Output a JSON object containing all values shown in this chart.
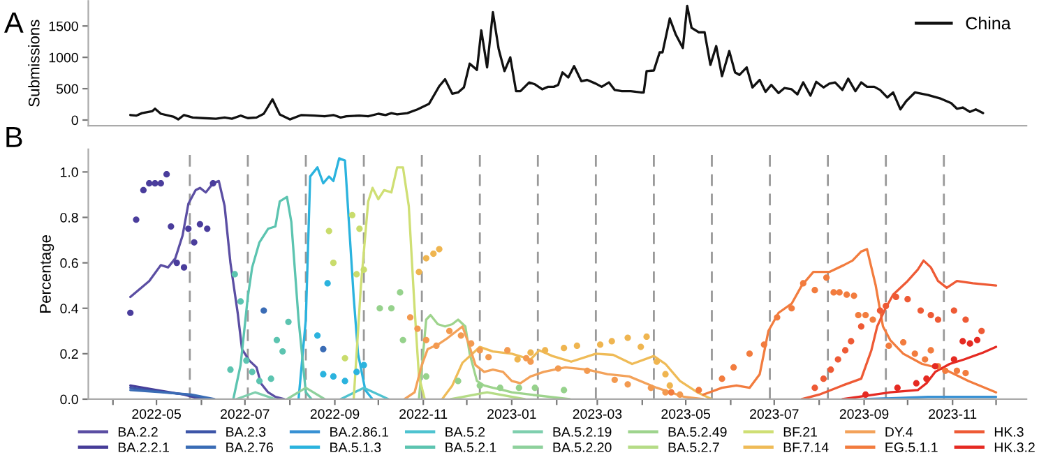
{
  "chart_data": [
    {
      "type": "line",
      "title": "A",
      "ylabel": "Submissions",
      "xlim": [
        "2022-03-15",
        "2023-12-22"
      ],
      "ylim": [
        -90,
        1900
      ],
      "yticks": [
        0,
        500,
        1000,
        1500
      ],
      "tick_labels": "y",
      "legend": "top right",
      "series": [
        {
          "name": "China",
          "color": "#111111",
          "x": [
            "2022-04-13",
            "2022-04-17",
            "2022-04-21",
            "2022-04-28",
            "2022-04-30",
            "2022-05-04",
            "2022-05-13",
            "2022-05-16",
            "2022-05-20",
            "2022-05-26",
            "2022-06-02",
            "2022-06-11",
            "2022-06-17",
            "2022-06-22",
            "2022-06-28",
            "2022-07-03",
            "2022-07-09",
            "2022-07-14",
            "2022-07-20",
            "2022-07-25",
            "2022-08-01",
            "2022-08-09",
            "2022-08-18",
            "2022-08-25",
            "2022-08-31",
            "2022-09-05",
            "2022-09-09",
            "2022-09-18",
            "2022-09-24",
            "2022-10-01",
            "2022-10-06",
            "2022-10-10",
            "2022-10-14",
            "2022-10-21",
            "2022-10-28",
            "2022-11-05",
            "2022-11-12",
            "2022-11-16",
            "2022-11-21",
            "2022-11-25",
            "2022-11-29",
            "2022-12-03",
            "2022-12-08",
            "2022-12-11",
            "2022-12-15",
            "2022-12-19",
            "2022-12-23",
            "2022-12-27",
            "2022-12-31",
            "2023-01-04",
            "2023-01-07",
            "2023-01-13",
            "2023-01-17",
            "2023-01-22",
            "2023-01-26",
            "2023-01-30",
            "2023-02-02",
            "2023-02-05",
            "2023-02-09",
            "2023-02-13",
            "2023-02-18",
            "2023-02-22",
            "2023-02-28",
            "2023-03-04",
            "2023-03-09",
            "2023-03-13",
            "2023-03-18",
            "2023-03-24",
            "2023-03-31",
            "2023-04-02",
            "2023-04-04",
            "2023-04-09",
            "2023-04-13",
            "2023-04-15",
            "2023-04-20",
            "2023-04-24",
            "2023-04-29",
            "2023-05-02",
            "2023-05-05",
            "2023-05-10",
            "2023-05-14",
            "2023-05-18",
            "2023-05-22",
            "2023-05-26",
            "2023-05-31",
            "2023-06-04",
            "2023-06-07",
            "2023-06-12",
            "2023-06-16",
            "2023-06-21",
            "2023-06-25",
            "2023-06-29",
            "2023-07-04",
            "2023-07-08",
            "2023-07-13",
            "2023-07-17",
            "2023-07-21",
            "2023-07-26",
            "2023-07-30",
            "2023-08-04",
            "2023-08-08",
            "2023-08-12",
            "2023-08-17",
            "2023-08-21",
            "2023-08-26",
            "2023-08-30",
            "2023-09-03",
            "2023-09-08",
            "2023-09-12",
            "2023-09-17",
            "2023-09-21",
            "2023-09-26",
            "2023-09-30",
            "2023-10-06",
            "2023-10-15",
            "2023-10-24",
            "2023-10-31",
            "2023-11-04",
            "2023-11-08",
            "2023-11-13",
            "2023-11-17",
            "2023-11-22"
          ],
          "values": [
            80,
            70,
            110,
            140,
            180,
            100,
            50,
            10,
            80,
            40,
            30,
            20,
            40,
            20,
            70,
            30,
            40,
            100,
            330,
            90,
            10,
            80,
            70,
            60,
            80,
            40,
            60,
            70,
            60,
            100,
            80,
            110,
            90,
            110,
            170,
            260,
            540,
            650,
            420,
            440,
            520,
            900,
            800,
            1430,
            840,
            1720,
            1130,
            780,
            1000,
            460,
            460,
            600,
            570,
            490,
            530,
            530,
            560,
            760,
            680,
            860,
            620,
            640,
            580,
            530,
            600,
            480,
            460,
            460,
            440,
            440,
            780,
            790,
            1080,
            1080,
            1620,
            1370,
            1150,
            1820,
            1470,
            1400,
            1400,
            880,
            1180,
            700,
            1100,
            760,
            720,
            840,
            520,
            640,
            450,
            560,
            430,
            510,
            490,
            410,
            600,
            390,
            610,
            520,
            580,
            600,
            480,
            660,
            460,
            600,
            530,
            530,
            480,
            360,
            440,
            170,
            300,
            440,
            400,
            340,
            270,
            180,
            200,
            130,
            170,
            110
          ]
        }
      ]
    },
    {
      "type": "line",
      "title": "B",
      "ylabel": "Percentage",
      "xlim": [
        "2022-03-15",
        "2023-12-22"
      ],
      "ylim": [
        0,
        1.1
      ],
      "yticks": [
        {
          "value": 0,
          "label": "0.0"
        },
        {
          "value": 0.2,
          "label": "0.2"
        },
        {
          "value": 0.4,
          "label": "0.4"
        },
        {
          "value": 0.6,
          "label": "0.6"
        },
        {
          "value": 0.8,
          "label": "0.8"
        },
        {
          "value": 1.0,
          "label": "1.0"
        }
      ],
      "xticks": [
        {
          "value": "2022-04-01",
          "label": null
        },
        {
          "value": "2022-05-01",
          "label": "2022-05"
        },
        {
          "value": "2022-06-01",
          "label": null
        },
        {
          "value": "2022-07-01",
          "label": "2022-07"
        },
        {
          "value": "2022-08-01",
          "label": null
        },
        {
          "value": "2022-09-01",
          "label": "2022-09"
        },
        {
          "value": "2022-10-01",
          "label": null
        },
        {
          "value": "2022-11-01",
          "label": "2022-11"
        },
        {
          "value": "2022-12-01",
          "label": null
        },
        {
          "value": "2023-01-01",
          "label": "2023-01"
        },
        {
          "value": "2023-02-01",
          "label": null
        },
        {
          "value": "2023-03-01",
          "label": "2023-03"
        },
        {
          "value": "2023-04-01",
          "label": null
        },
        {
          "value": "2023-05-01",
          "label": "2023-05"
        },
        {
          "value": "2023-06-01",
          "label": null
        },
        {
          "value": "2023-07-01",
          "label": "2023-07"
        },
        {
          "value": "2023-08-01",
          "label": null
        },
        {
          "value": "2023-09-01",
          "label": "2023-09"
        },
        {
          "value": "2023-10-01",
          "label": null
        },
        {
          "value": "2023-11-01",
          "label": "2023-11"
        },
        {
          "value": "2023-12-01",
          "label": null
        }
      ],
      "legend": "bottom",
      "ref_lines": [
        {
          "axis": "x",
          "value": "2022-05-24",
          "color": "#999999",
          "line_style": "dashed"
        },
        {
          "axis": "x",
          "value": "2022-07-03",
          "color": "#999999",
          "line_style": "dashed"
        },
        {
          "axis": "x",
          "value": "2022-08-12",
          "color": "#999999",
          "line_style": "dashed"
        },
        {
          "axis": "x",
          "value": "2022-09-21",
          "color": "#999999",
          "line_style": "dashed"
        },
        {
          "axis": "x",
          "value": "2022-10-31",
          "color": "#999999",
          "line_style": "dashed"
        },
        {
          "axis": "x",
          "value": "2022-12-10",
          "color": "#999999",
          "line_style": "dashed"
        },
        {
          "axis": "x",
          "value": "2023-01-19",
          "color": "#999999",
          "line_style": "dashed"
        },
        {
          "axis": "x",
          "value": "2023-02-28",
          "color": "#999999",
          "line_style": "dashed"
        },
        {
          "axis": "x",
          "value": "2023-04-09",
          "color": "#999999",
          "line_style": "dashed"
        },
        {
          "axis": "x",
          "value": "2023-05-19",
          "color": "#999999",
          "line_style": "dashed"
        },
        {
          "axis": "x",
          "value": "2023-06-28",
          "color": "#999999",
          "line_style": "dashed"
        },
        {
          "axis": "x",
          "value": "2023-08-07",
          "color": "#999999",
          "line_style": "dashed"
        },
        {
          "axis": "x",
          "value": "2023-09-16",
          "color": "#999999",
          "line_style": "dashed"
        },
        {
          "axis": "x",
          "value": "2023-10-26",
          "color": "#999999",
          "line_style": "dashed"
        }
      ],
      "series": [
        {
          "name": "BA.2.2",
          "color": "#5b4ea3",
          "type": "line",
          "x": [
            "2022-04-13",
            "2022-04-26",
            "2022-05-04",
            "2022-05-09",
            "2022-05-14",
            "2022-05-19",
            "2022-05-23",
            "2022-05-28",
            "2022-05-31",
            "2022-06-04",
            "2022-06-09",
            "2022-06-13",
            "2022-06-17",
            "2022-06-21",
            "2022-06-26",
            "2022-06-29",
            "2022-07-04",
            "2022-07-09",
            "2022-07-12",
            "2022-07-17",
            "2022-07-22",
            "2022-07-28"
          ],
          "values": [
            0.45,
            0.52,
            0.59,
            0.58,
            0.62,
            0.72,
            0.86,
            0.92,
            0.93,
            0.91,
            0.95,
            0.96,
            0.85,
            0.6,
            0.38,
            0.22,
            0.17,
            0.14,
            0.07,
            0.03,
            0.01,
            0
          ]
        },
        {
          "name": "BA.2.2.1",
          "color": "#463c98",
          "type": "line",
          "x": [
            "2022-04-13",
            "2022-05-01",
            "2022-05-20",
            "2022-06-01"
          ],
          "values": [
            0.06,
            0.04,
            0.02,
            0
          ]
        },
        {
          "name": "BA.2.3",
          "color": "#3d55a8",
          "type": "line",
          "x": [
            "2022-04-13",
            "2022-05-01",
            "2022-05-22",
            "2022-06-05"
          ],
          "values": [
            0.05,
            0.035,
            0.02,
            0
          ]
        },
        {
          "name": "BA.2.76",
          "color": "#3a6cb5",
          "type": "line",
          "x": [
            "2022-04-13",
            "2022-05-05",
            "2022-05-25",
            "2022-06-10"
          ],
          "values": [
            0.04,
            0.03,
            0.02,
            0
          ]
        },
        {
          "name": "BA.2.86.1",
          "color": "#3891d4",
          "type": "line",
          "x": [
            "2023-09-01",
            "2023-10-15",
            "2023-12-01"
          ],
          "values": [
            0,
            0.01,
            0.01
          ]
        },
        {
          "name": "BA.5.1.3",
          "color": "#2bb3de",
          "type": "line",
          "x": [
            "2022-08-07",
            "2022-08-12",
            "2022-08-15",
            "2022-08-20",
            "2022-08-24",
            "2022-08-28",
            "2022-08-31",
            "2022-09-04",
            "2022-09-08",
            "2022-09-11",
            "2022-09-14",
            "2022-09-17",
            "2022-09-22",
            "2022-09-27"
          ],
          "values": [
            0,
            0.35,
            0.98,
            1.02,
            0.95,
            0.98,
            0.96,
            1.06,
            1.05,
            0.75,
            0.45,
            0.2,
            0.04,
            0
          ]
        },
        {
          "name": "BA.5.2",
          "color": "#4ec3d0",
          "type": "line",
          "x": [
            "2022-09-05",
            "2022-09-21",
            "2022-10-08"
          ],
          "values": [
            0,
            0.05,
            0
          ]
        },
        {
          "name": "BA.5.2.1",
          "color": "#5cc4b0",
          "type": "line",
          "x": [
            "2022-06-23",
            "2022-06-28",
            "2022-07-03",
            "2022-07-06",
            "2022-07-11",
            "2022-07-17",
            "2022-07-22",
            "2022-07-25",
            "2022-07-30",
            "2022-08-02",
            "2022-08-07",
            "2022-08-12",
            "2022-08-16"
          ],
          "values": [
            0,
            0.15,
            0.45,
            0.58,
            0.69,
            0.75,
            0.76,
            0.87,
            0.89,
            0.78,
            0.35,
            0.03,
            0
          ]
        },
        {
          "name": "BA.5.2.19",
          "color": "#7fcfae",
          "type": "line",
          "x": [
            "2022-06-25",
            "2022-07-08",
            "2022-07-22"
          ],
          "values": [
            0,
            0.03,
            0
          ]
        },
        {
          "name": "BA.5.2.20",
          "color": "#8ed19c",
          "type": "line",
          "x": [
            "2022-07-30",
            "2022-08-12",
            "2022-08-25"
          ],
          "values": [
            0,
            0.05,
            0
          ]
        },
        {
          "name": "BA.5.2.49",
          "color": "#9ed48d",
          "type": "line",
          "x": [
            "2022-10-29",
            "2022-11-03",
            "2022-11-06",
            "2022-11-11",
            "2022-11-16",
            "2022-11-21",
            "2022-11-25",
            "2022-11-30",
            "2022-12-03",
            "2022-12-08",
            "2022-12-13",
            "2022-12-19",
            "2022-12-26",
            "2023-01-01",
            "2023-01-14",
            "2023-02-10"
          ],
          "values": [
            0,
            0.35,
            0.37,
            0.33,
            0.32,
            0.33,
            0.35,
            0.32,
            0.2,
            0.08,
            0.06,
            0.05,
            0.04,
            0.03,
            0.02,
            0
          ]
        },
        {
          "name": "BA.5.2.7",
          "color": "#b5dc86",
          "type": "line",
          "x": [
            "2022-11-20",
            "2022-12-15",
            "2023-01-10"
          ],
          "values": [
            0,
            0.03,
            0
          ]
        },
        {
          "name": "BF.21",
          "color": "#cfdf74",
          "type": "line",
          "x": [
            "2022-09-14",
            "2022-09-19",
            "2022-09-24",
            "2022-09-27",
            "2022-10-01",
            "2022-10-05",
            "2022-10-10",
            "2022-10-14",
            "2022-10-18",
            "2022-10-22",
            "2022-10-26",
            "2022-10-29",
            "2022-11-02"
          ],
          "values": [
            0,
            0.5,
            0.87,
            0.93,
            0.88,
            0.92,
            0.91,
            1.02,
            1.02,
            0.85,
            0.4,
            0.1,
            0
          ]
        },
        {
          "name": "BF.7.14",
          "color": "#efbb57",
          "type": "line",
          "x": [
            "2022-11-14",
            "2022-11-21",
            "2022-11-28",
            "2022-12-10",
            "2022-12-19",
            "2023-01-01",
            "2023-01-14",
            "2023-01-20",
            "2023-01-29",
            "2023-02-11",
            "2023-02-28",
            "2023-03-12",
            "2023-03-25",
            "2023-04-09",
            "2023-04-17",
            "2023-04-27",
            "2023-05-09",
            "2023-05-19"
          ],
          "values": [
            0,
            0.06,
            0.16,
            0.23,
            0.21,
            0.2,
            0.175,
            0.215,
            0.19,
            0.165,
            0.2,
            0.195,
            0.155,
            0.19,
            0.155,
            0.08,
            0.03,
            0
          ]
        },
        {
          "name": "DY.4",
          "color": "#f3a25a",
          "type": "line",
          "x": [
            "2022-10-19",
            "2022-10-26",
            "2022-10-31",
            "2022-11-04",
            "2022-11-11",
            "2022-11-18",
            "2022-11-24",
            "2022-11-28",
            "2022-12-02",
            "2022-12-07",
            "2022-12-13",
            "2022-12-19",
            "2022-12-26",
            "2023-01-01",
            "2023-01-07",
            "2023-01-14",
            "2023-01-23",
            "2023-02-07",
            "2023-02-22",
            "2023-03-08",
            "2023-03-23",
            "2023-04-11",
            "2023-04-30",
            "2023-05-13"
          ],
          "values": [
            0,
            0.03,
            0.15,
            0.22,
            0.24,
            0.27,
            0.3,
            0.32,
            0.25,
            0.15,
            0.12,
            0.13,
            0.12,
            0.08,
            0.07,
            0.1,
            0.12,
            0.14,
            0.13,
            0.11,
            0.1,
            0.05,
            0.01,
            0
          ]
        },
        {
          "name": "EG.5.1.1",
          "color": "#f27c3e",
          "type": "line",
          "x": [
            "2023-05-13",
            "2023-05-26",
            "2023-06-05",
            "2023-06-14",
            "2023-06-21",
            "2023-06-27",
            "2023-07-04",
            "2023-07-13",
            "2023-07-20",
            "2023-07-28",
            "2023-08-08",
            "2023-08-18",
            "2023-08-24",
            "2023-08-30",
            "2023-09-03",
            "2023-09-06",
            "2023-09-09",
            "2023-09-14",
            "2023-09-19",
            "2023-09-28",
            "2023-10-11",
            "2023-10-27",
            "2023-11-12",
            "2023-12-01"
          ],
          "values": [
            0.02,
            0.05,
            0.06,
            0.05,
            0.11,
            0.3,
            0.38,
            0.42,
            0.5,
            0.56,
            0.56,
            0.59,
            0.61,
            0.65,
            0.66,
            0.58,
            0.5,
            0.32,
            0.26,
            0.2,
            0.155,
            0.13,
            0.08,
            0.03
          ]
        },
        {
          "name": "HK.3",
          "color": "#ee5a35",
          "type": "line",
          "x": [
            "2023-07-20",
            "2023-08-01",
            "2023-08-17",
            "2023-08-30",
            "2023-09-06",
            "2023-09-10",
            "2023-09-15",
            "2023-09-21",
            "2023-10-01",
            "2023-10-08",
            "2023-10-12",
            "2023-10-17",
            "2023-10-22",
            "2023-10-28",
            "2023-11-04",
            "2023-11-15",
            "2023-12-01"
          ],
          "values": [
            0,
            0.02,
            0.06,
            0.09,
            0.215,
            0.32,
            0.39,
            0.46,
            0.52,
            0.57,
            0.61,
            0.58,
            0.52,
            0.49,
            0.52,
            0.51,
            0.5
          ]
        },
        {
          "name": "HK.3.2",
          "color": "#e52a22",
          "type": "line",
          "x": [
            "2023-08-17",
            "2023-09-19",
            "2023-10-08",
            "2023-10-14",
            "2023-10-20",
            "2023-10-30",
            "2023-11-09",
            "2023-11-22",
            "2023-12-01"
          ],
          "values": [
            0,
            0.03,
            0.04,
            0.07,
            0.12,
            0.155,
            0.175,
            0.205,
            0.23
          ]
        },
        {
          "color": "#4a3d9c",
          "type": "scatter",
          "marker": "circle",
          "x": [
            "2022-04-13",
            "2022-04-17",
            "2022-04-22",
            "2022-04-26",
            "2022-04-30",
            "2022-05-04",
            "2022-05-08",
            "2022-05-11",
            "2022-05-15",
            "2022-05-20",
            "2022-05-23",
            "2022-05-27",
            "2022-05-31",
            "2022-06-05",
            "2022-06-09"
          ],
          "values": [
            0.38,
            0.79,
            0.92,
            0.95,
            0.95,
            0.95,
            0.99,
            0.76,
            0.6,
            0.58,
            0.75,
            0.69,
            0.77,
            0.75,
            0.95
          ]
        },
        {
          "color": "#3a6cb5",
          "type": "scatter",
          "marker": "circle",
          "x": [
            "2022-07-14",
            "2022-08-24"
          ],
          "values": [
            0.39,
            0.22
          ]
        },
        {
          "color": "#5cc4b0",
          "type": "scatter",
          "marker": "circle",
          "x": [
            "2022-06-21",
            "2022-06-24",
            "2022-06-28",
            "2022-07-02",
            "2022-07-06",
            "2022-07-11",
            "2022-07-19",
            "2022-07-23",
            "2022-07-27",
            "2022-07-31"
          ],
          "values": [
            0.13,
            0.55,
            0.43,
            0.17,
            0.12,
            0.08,
            0.09,
            0.26,
            0.21,
            0.34
          ]
        },
        {
          "color": "#2bb3de",
          "type": "scatter",
          "marker": "circle",
          "x": [
            "2022-08-20",
            "2022-08-24",
            "2022-08-27",
            "2022-08-31",
            "2022-09-08",
            "2022-09-16",
            "2022-09-21"
          ],
          "values": [
            0.28,
            0.11,
            0.51,
            0.1,
            0.08,
            0.12,
            0.15
          ]
        },
        {
          "color": "#c9dc6c",
          "type": "scatter",
          "marker": "circle",
          "x": [
            "2022-08-28",
            "2022-08-31",
            "2022-09-08",
            "2022-09-13",
            "2022-09-16",
            "2022-09-18",
            "2022-09-21"
          ],
          "values": [
            0.74,
            0.6,
            0.18,
            0.81,
            0.55,
            0.75,
            0.57
          ]
        },
        {
          "color": "#96d28c",
          "type": "scatter",
          "marker": "circle",
          "x": [
            "2022-10-02",
            "2022-10-10",
            "2022-10-16",
            "2022-10-18",
            "2022-11-03",
            "2022-11-25",
            "2022-12-10",
            "2022-12-24",
            "2023-01-06",
            "2023-01-17",
            "2023-02-06"
          ],
          "values": [
            0.4,
            0.4,
            0.47,
            0.26,
            0.1,
            0.08,
            0.06,
            0.05,
            0.05,
            0.05,
            0.04
          ]
        },
        {
          "color": "#efb550",
          "type": "scatter",
          "marker": "circle",
          "x": [
            "2022-10-29",
            "2022-11-03",
            "2022-11-08",
            "2022-11-12",
            "2023-01-05",
            "2023-01-14",
            "2023-01-24",
            "2023-02-06",
            "2023-02-15",
            "2023-03-03",
            "2023-03-11",
            "2023-03-22",
            "2023-03-31",
            "2023-04-04",
            "2023-04-11",
            "2023-04-17",
            "2023-04-20"
          ],
          "values": [
            0.56,
            0.62,
            0.64,
            0.66,
            0.175,
            0.205,
            0.215,
            0.225,
            0.235,
            0.24,
            0.255,
            0.27,
            0.23,
            0.275,
            0.165,
            0.11,
            0.06
          ]
        },
        {
          "color": "#f39a50",
          "type": "scatter",
          "marker": "circle",
          "x": [
            "2022-10-23",
            "2022-10-28",
            "2022-11-03",
            "2022-11-10",
            "2022-11-19",
            "2022-11-27",
            "2022-12-04",
            "2022-12-10",
            "2022-12-16",
            "2022-12-29",
            "2023-01-11",
            "2023-01-14",
            "2023-02-02",
            "2023-02-22",
            "2023-03-13",
            "2023-03-22",
            "2023-04-07",
            "2023-04-17",
            "2023-04-27"
          ],
          "values": [
            0.36,
            0.31,
            0.26,
            0.235,
            0.3,
            0.28,
            0.245,
            0.215,
            0.185,
            0.215,
            0.18,
            0.165,
            0.135,
            0.125,
            0.085,
            0.065,
            0.05,
            0.03,
            0.02
          ]
        },
        {
          "color": "#f27c3e",
          "type": "scatter",
          "marker": "circle",
          "x": [
            "2023-04-21",
            "2023-05-10",
            "2023-05-26",
            "2023-06-03",
            "2023-06-14",
            "2023-06-24",
            "2023-07-03",
            "2023-07-13",
            "2023-07-21",
            "2023-07-29",
            "2023-08-06",
            "2023-08-11",
            "2023-08-15",
            "2023-08-20",
            "2023-08-25",
            "2023-08-28",
            "2023-09-02",
            "2023-09-07",
            "2023-09-18",
            "2023-09-28",
            "2023-10-06",
            "2023-10-13",
            "2023-10-17",
            "2023-10-22",
            "2023-10-27",
            "2023-11-04",
            "2023-11-10"
          ],
          "values": [
            0.03,
            0.04,
            0.09,
            0.14,
            0.2,
            0.24,
            0.36,
            0.4,
            0.51,
            0.48,
            0.535,
            0.47,
            0.47,
            0.46,
            0.455,
            0.37,
            0.37,
            0.35,
            0.235,
            0.25,
            0.2,
            0.175,
            0.215,
            0.145,
            0.125,
            0.125,
            0.115
          ]
        },
        {
          "color": "#ee5a35",
          "type": "scatter",
          "marker": "circle",
          "x": [
            "2023-07-29",
            "2023-08-04",
            "2023-08-09",
            "2023-08-14",
            "2023-08-19",
            "2023-08-23",
            "2023-08-30",
            "2023-09-12",
            "2023-09-16",
            "2023-09-23",
            "2023-10-01",
            "2023-10-10",
            "2023-10-17",
            "2023-10-22",
            "2023-11-02",
            "2023-11-10",
            "2023-11-21"
          ],
          "values": [
            0.05,
            0.09,
            0.13,
            0.175,
            0.215,
            0.255,
            0.32,
            0.39,
            0.41,
            0.45,
            0.44,
            0.39,
            0.37,
            0.35,
            0.39,
            0.35,
            0.3
          ]
        },
        {
          "color": "#e52a22",
          "type": "scatter",
          "marker": "circle",
          "x": [
            "2023-09-02",
            "2023-09-24",
            "2023-10-07",
            "2023-10-14",
            "2023-10-20",
            "2023-11-02",
            "2023-11-08",
            "2023-11-13",
            "2023-11-18"
          ],
          "values": [
            0.02,
            0.05,
            0.07,
            0.09,
            0.145,
            0.175,
            0.255,
            0.245,
            0.26
          ]
        }
      ]
    }
  ]
}
